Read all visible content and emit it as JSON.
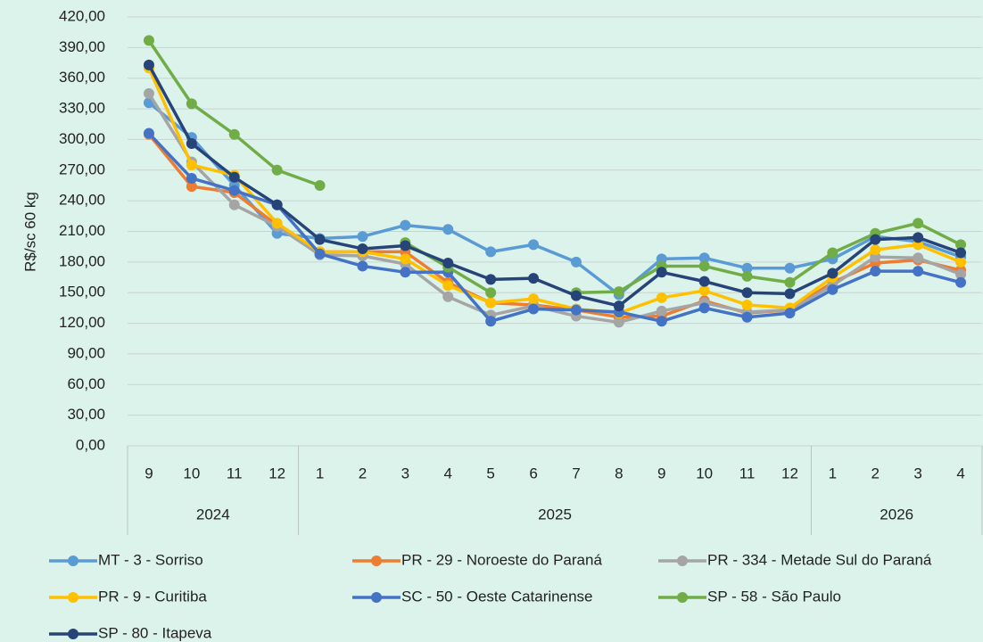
{
  "chart_data": {
    "type": "line",
    "y_label": "R$/sc 60 kg",
    "categories": [
      "9",
      "10",
      "11",
      "12",
      "1",
      "2",
      "3",
      "4",
      "5",
      "6",
      "7",
      "8",
      "9",
      "10",
      "11",
      "12",
      "1",
      "2",
      "3",
      "4"
    ],
    "year_groups": [
      {
        "label": "2024",
        "count": 4
      },
      {
        "label": "2025",
        "count": 12
      },
      {
        "label": "2026",
        "count": 4
      }
    ],
    "ylim": [
      0,
      420
    ],
    "yticks": [
      {
        "value": 0,
        "label": "0,00"
      },
      {
        "value": 30,
        "label": "30,00"
      },
      {
        "value": 60,
        "label": "60,00"
      },
      {
        "value": 90,
        "label": "90,00"
      },
      {
        "value": 120,
        "label": "120,00"
      },
      {
        "value": 150,
        "label": "150,00"
      },
      {
        "value": 180,
        "label": "180,00"
      },
      {
        "value": 210,
        "label": "210,00"
      },
      {
        "value": 240,
        "label": "240,00"
      },
      {
        "value": 270,
        "label": "270,00"
      },
      {
        "value": 300,
        "label": "300,00"
      },
      {
        "value": 330,
        "label": "330,00"
      },
      {
        "value": 360,
        "label": "360,00"
      },
      {
        "value": 390,
        "label": "390,00"
      },
      {
        "value": 420,
        "label": "420,00"
      }
    ],
    "grid": true,
    "series": [
      {
        "name": "MT - 3 - Sorriso",
        "color": "#5b9bd5",
        "values": [
          336,
          302,
          255,
          208,
          203,
          205,
          216,
          212,
          190,
          197,
          180,
          148,
          183,
          184,
          174,
          174,
          183,
          205,
          200,
          185
        ]
      },
      {
        "name": "PR - 29 - Noroeste do Paraná",
        "color": "#ed7d31",
        "values": [
          305,
          254,
          248,
          216,
          190,
          190,
          190,
          160,
          140,
          138,
          133,
          126,
          127,
          142,
          130,
          133,
          160,
          179,
          182,
          172
        ]
      },
      {
        "name": "PR - 334 - Metade Sul do Paraná",
        "color": "#a5a5a5",
        "values": [
          345,
          278,
          236,
          215,
          187,
          186,
          178,
          146,
          128,
          137,
          127,
          121,
          132,
          140,
          131,
          133,
          157,
          185,
          184,
          168
        ]
      },
      {
        "name": "PR - 9 - Curitiba",
        "color": "#ffc000",
        "values": [
          370,
          275,
          265,
          218,
          190,
          190,
          183,
          157,
          140,
          144,
          134,
          130,
          145,
          152,
          138,
          135,
          165,
          192,
          197,
          180
        ]
      },
      {
        "name": "SC - 50 - Oeste Catarinense",
        "color": "#4472c4",
        "values": [
          306,
          262,
          250,
          236,
          188,
          176,
          170,
          170,
          122,
          134,
          133,
          131,
          122,
          135,
          126,
          130,
          153,
          171,
          171,
          160
        ]
      },
      {
        "name": "SP - 58 - São Paulo",
        "color": "#70ad47",
        "values": [
          397,
          335,
          305,
          270,
          255,
          null,
          199,
          175,
          150,
          null,
          150,
          151,
          176,
          176,
          166,
          160,
          189,
          208,
          218,
          197
        ]
      },
      {
        "name": "SP - 80 - Itapeva",
        "color": "#264478",
        "values": [
          373,
          296,
          263,
          236,
          202,
          193,
          196,
          179,
          163,
          164,
          147,
          137,
          170,
          161,
          150,
          149,
          169,
          202,
          204,
          189
        ]
      }
    ]
  }
}
